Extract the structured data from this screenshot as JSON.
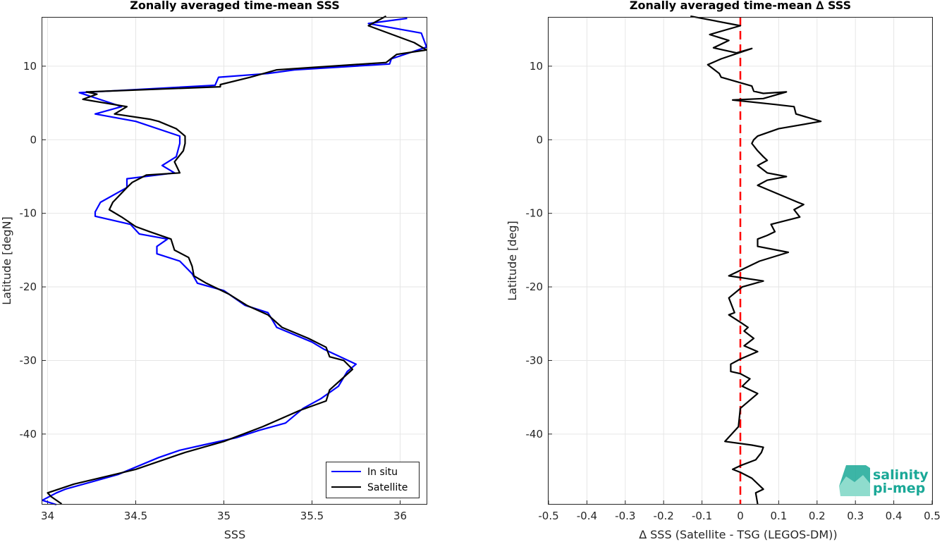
{
  "chart_data": [
    {
      "type": "line",
      "title": "Zonally averaged time-mean SSS",
      "xlabel": "SSS",
      "ylabel": "Latitude [degN]",
      "xlim": [
        33.97,
        36.15
      ],
      "ylim": [
        -49.5,
        16.6
      ],
      "x_ticks": [
        34,
        34.5,
        35,
        35.5,
        36
      ],
      "x_tick_labels": [
        "34",
        "34.5",
        "35",
        "35.5",
        "36"
      ],
      "y_ticks": [
        -40,
        -30,
        -20,
        -10,
        0,
        10
      ],
      "y_tick_labels": [
        "-40",
        "-30",
        "-20",
        "-10",
        "0",
        "10"
      ],
      "grid": true,
      "legend_position": "bottom-right",
      "series": [
        {
          "name": "In situ",
          "color": "#0000ff",
          "points": [
            [
              36.04,
              16.5
            ],
            [
              35.82,
              15.8
            ],
            [
              36.12,
              14.5
            ],
            [
              36.15,
              12.6
            ],
            [
              35.95,
              11.0
            ],
            [
              35.94,
              10.3
            ],
            [
              35.4,
              9.5
            ],
            [
              35.25,
              9.0
            ],
            [
              34.97,
              8.5
            ],
            [
              34.95,
              7.4
            ],
            [
              34.18,
              6.4
            ],
            [
              34.32,
              5.3
            ],
            [
              34.42,
              4.5
            ],
            [
              34.27,
              3.5
            ],
            [
              34.5,
              2.5
            ],
            [
              34.75,
              0.5
            ],
            [
              34.75,
              -0.5
            ],
            [
              34.73,
              -2.3
            ],
            [
              34.65,
              -3.5
            ],
            [
              34.72,
              -4.5
            ],
            [
              34.45,
              -5.3
            ],
            [
              34.45,
              -6.5
            ],
            [
              34.3,
              -8.5
            ],
            [
              34.27,
              -9.8
            ],
            [
              34.27,
              -10.4
            ],
            [
              34.47,
              -11.5
            ],
            [
              34.52,
              -12.8
            ],
            [
              34.68,
              -13.5
            ],
            [
              34.62,
              -14.5
            ],
            [
              34.62,
              -15.5
            ],
            [
              34.75,
              -16.5
            ],
            [
              34.82,
              -18.2
            ],
            [
              34.85,
              -19.5
            ],
            [
              35.0,
              -20.5
            ],
            [
              35.12,
              -22.5
            ],
            [
              35.25,
              -23.5
            ],
            [
              35.3,
              -25.5
            ],
            [
              35.5,
              -27.5
            ],
            [
              35.57,
              -28.5
            ],
            [
              35.75,
              -30.5
            ],
            [
              35.7,
              -31.5
            ],
            [
              35.65,
              -33.5
            ],
            [
              35.55,
              -35.2
            ],
            [
              35.45,
              -36.5
            ],
            [
              35.35,
              -38.5
            ],
            [
              35.2,
              -39.5
            ],
            [
              35.07,
              -40.5
            ],
            [
              34.88,
              -41.5
            ],
            [
              34.75,
              -42.2
            ],
            [
              34.63,
              -43.2
            ],
            [
              34.4,
              -45.5
            ],
            [
              34.25,
              -46.5
            ],
            [
              34.1,
              -47.5
            ],
            [
              34.05,
              -48.0
            ],
            [
              33.97,
              -49.0
            ],
            [
              34.05,
              -49.6
            ]
          ]
        },
        {
          "name": "Satellite",
          "color": "#000000",
          "points": [
            [
              35.92,
              16.8
            ],
            [
              35.82,
              15.5
            ],
            [
              36.08,
              13.2
            ],
            [
              36.15,
              12.2
            ],
            [
              35.98,
              11.6
            ],
            [
              35.92,
              10.5
            ],
            [
              35.3,
              9.5
            ],
            [
              35.15,
              8.5
            ],
            [
              34.98,
              7.5
            ],
            [
              34.98,
              7.2
            ],
            [
              34.22,
              6.5
            ],
            [
              34.28,
              6.2
            ],
            [
              34.2,
              5.5
            ],
            [
              34.45,
              4.5
            ],
            [
              34.38,
              3.5
            ],
            [
              34.58,
              2.8
            ],
            [
              34.63,
              2.5
            ],
            [
              34.73,
              1.5
            ],
            [
              34.78,
              0.5
            ],
            [
              34.78,
              -0.5
            ],
            [
              34.77,
              -1.5
            ],
            [
              34.72,
              -3.0
            ],
            [
              34.75,
              -4.5
            ],
            [
              34.56,
              -4.8
            ],
            [
              34.48,
              -5.8
            ],
            [
              34.45,
              -6.5
            ],
            [
              34.37,
              -8.5
            ],
            [
              34.35,
              -9.5
            ],
            [
              34.42,
              -10.5
            ],
            [
              34.5,
              -11.8
            ],
            [
              34.58,
              -12.5
            ],
            [
              34.7,
              -13.5
            ],
            [
              34.72,
              -15.0
            ],
            [
              34.8,
              -16.0
            ],
            [
              34.82,
              -17.2
            ],
            [
              34.83,
              -18.5
            ],
            [
              34.9,
              -19.5
            ],
            [
              35.03,
              -21.0
            ],
            [
              35.13,
              -22.5
            ],
            [
              35.25,
              -23.8
            ],
            [
              35.33,
              -25.5
            ],
            [
              35.48,
              -27.0
            ],
            [
              35.58,
              -28.2
            ],
            [
              35.6,
              -29.5
            ],
            [
              35.68,
              -30.0
            ],
            [
              35.73,
              -31.2
            ],
            [
              35.67,
              -32.5
            ],
            [
              35.6,
              -34.0
            ],
            [
              35.58,
              -35.5
            ],
            [
              35.43,
              -36.8
            ],
            [
              35.22,
              -39.0
            ],
            [
              35.0,
              -41.0
            ],
            [
              34.78,
              -42.5
            ],
            [
              34.5,
              -44.8
            ],
            [
              34.38,
              -45.5
            ],
            [
              34.15,
              -46.8
            ],
            [
              34.0,
              -48.0
            ],
            [
              34.02,
              -48.5
            ],
            [
              34.08,
              -49.5
            ]
          ]
        }
      ]
    },
    {
      "type": "line",
      "title": "Zonally averaged time-mean ∆ SSS",
      "xlabel": "∆ SSS (Satellite - TSG (LEGOS-DM))",
      "ylabel": "Latitude [deg]",
      "xlim": [
        -0.5,
        0.5
      ],
      "ylim": [
        -49.5,
        16.6
      ],
      "x_ticks": [
        -0.5,
        -0.4,
        -0.3,
        -0.2,
        -0.1,
        0,
        0.1,
        0.2,
        0.3,
        0.4,
        0.5
      ],
      "x_tick_labels": [
        "-0.5",
        "-0.4",
        "-0.3",
        "-0.2",
        "-0.1",
        "0",
        "0.1",
        "0.2",
        "0.3",
        "0.4",
        "0.5"
      ],
      "y_ticks": [
        -40,
        -30,
        -20,
        -10,
        0,
        10
      ],
      "y_tick_labels": [
        "-40",
        "-30",
        "-20",
        "-10",
        "0",
        "10"
      ],
      "grid": true,
      "reference_line": {
        "x": 0,
        "color": "#ff0000",
        "style": "dashed"
      },
      "series": [
        {
          "color": "#000000",
          "points": [
            [
              -0.13,
              16.8
            ],
            [
              0.0,
              15.5
            ],
            [
              -0.08,
              14.3
            ],
            [
              -0.03,
              13.5
            ],
            [
              -0.07,
              12.5
            ],
            [
              -0.01,
              11.8
            ],
            [
              0.03,
              12.4
            ],
            [
              -0.05,
              11.0
            ],
            [
              -0.085,
              10.2
            ],
            [
              -0.055,
              9.0
            ],
            [
              -0.05,
              8.5
            ],
            [
              0.03,
              7.3
            ],
            [
              0.035,
              6.6
            ],
            [
              0.06,
              6.3
            ],
            [
              0.12,
              6.5
            ],
            [
              0.06,
              5.6
            ],
            [
              -0.02,
              5.4
            ],
            [
              0.09,
              4.8
            ],
            [
              0.14,
              4.5
            ],
            [
              0.145,
              3.5
            ],
            [
              0.21,
              2.5
            ],
            [
              0.1,
              1.5
            ],
            [
              0.045,
              0.5
            ],
            [
              0.035,
              0.0
            ],
            [
              0.03,
              -0.5
            ],
            [
              0.045,
              -1.5
            ],
            [
              0.06,
              -2.3
            ],
            [
              0.07,
              -2.8
            ],
            [
              0.045,
              -3.5
            ],
            [
              0.07,
              -4.5
            ],
            [
              0.12,
              -5.0
            ],
            [
              0.07,
              -5.5
            ],
            [
              0.045,
              -6.2
            ],
            [
              0.15,
              -8.5
            ],
            [
              0.165,
              -8.8
            ],
            [
              0.14,
              -9.5
            ],
            [
              0.155,
              -10.5
            ],
            [
              0.08,
              -11.5
            ],
            [
              0.09,
              -12.5
            ],
            [
              0.07,
              -13.0
            ],
            [
              0.045,
              -13.5
            ],
            [
              0.045,
              -14.5
            ],
            [
              0.125,
              -15.3
            ],
            [
              0.05,
              -16.5
            ],
            [
              -0.03,
              -18.5
            ],
            [
              0.06,
              -19.2
            ],
            [
              0.005,
              -20.0
            ],
            [
              -0.03,
              -21.5
            ],
            [
              -0.015,
              -23.5
            ],
            [
              -0.03,
              -23.8
            ],
            [
              0.0,
              -24.8
            ],
            [
              0.02,
              -25.5
            ],
            [
              0.01,
              -26.0
            ],
            [
              0.035,
              -27.0
            ],
            [
              0.01,
              -28.0
            ],
            [
              0.045,
              -28.8
            ],
            [
              0.0,
              -29.8
            ],
            [
              -0.025,
              -30.5
            ],
            [
              -0.025,
              -31.5
            ],
            [
              0.0,
              -31.8
            ],
            [
              0.025,
              -32.5
            ],
            [
              0.005,
              -33.5
            ],
            [
              0.045,
              -34.5
            ],
            [
              0.0,
              -36.5
            ],
            [
              -0.005,
              -39.0
            ],
            [
              -0.04,
              -41.0
            ],
            [
              0.03,
              -41.5
            ],
            [
              0.06,
              -41.8
            ],
            [
              0.055,
              -42.5
            ],
            [
              0.04,
              -43.5
            ],
            [
              0.0,
              -44.3
            ],
            [
              -0.02,
              -44.8
            ],
            [
              0.0,
              -45.2
            ],
            [
              0.03,
              -46.0
            ],
            [
              0.06,
              -47.5
            ],
            [
              0.04,
              -48.0
            ],
            [
              0.045,
              -49.5
            ]
          ]
        }
      ]
    }
  ],
  "logo": {
    "line1": "salinity",
    "line2": "pi-mep"
  }
}
